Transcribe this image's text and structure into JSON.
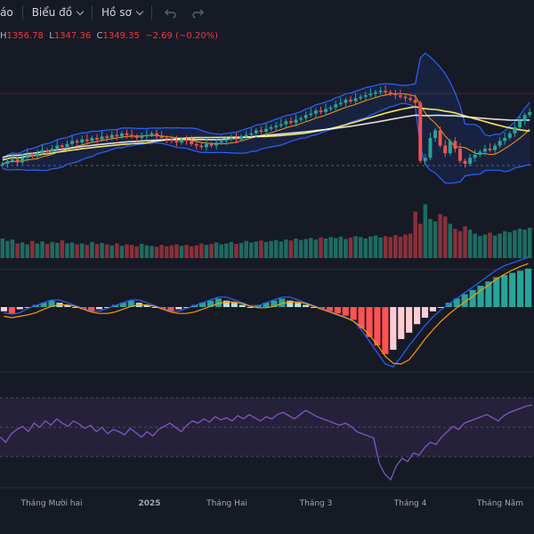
{
  "toolbar": {
    "truncated_item": "áo",
    "chart_menu": "Biểu đồ",
    "profile_menu": "Hồ sơ"
  },
  "legend": {
    "open_label": "",
    "high_label": "H",
    "high_value": "1356.78",
    "low_label": "L",
    "low_value": "1347.36",
    "close_label": "C",
    "close_value": "1349.35",
    "change": "−2.69 (−0.20%)"
  },
  "colors": {
    "background": "#161a25",
    "up": "#26a69a",
    "down": "#ef5350",
    "bb_band": "#2962ff",
    "ma_fast": "#ff9800",
    "ma_slow": "#f5e663",
    "ma_long": "#ffffff",
    "rsi": "#7e57c2"
  },
  "chart_data": {
    "type": "candlestick",
    "x_axis_labels": [
      "Tháng Mười hai",
      "2025",
      "Tháng Hai",
      "Tháng 3",
      "Tháng 4",
      "Tháng Năm"
    ],
    "panes": [
      "price",
      "volume",
      "macd",
      "rsi"
    ],
    "last_bar": {
      "high": 1356.78,
      "low": 1347.36,
      "close": 1349.35,
      "change": -2.69,
      "change_pct": -0.2
    },
    "price_shape": [
      18,
      20,
      21,
      19,
      22,
      24,
      23,
      25,
      27,
      26,
      28,
      30,
      29,
      31,
      33,
      32,
      34,
      33,
      35,
      34,
      36,
      35,
      37,
      36,
      38,
      37,
      36,
      35,
      36,
      37,
      38,
      36,
      35,
      34,
      33,
      32,
      34,
      33,
      31,
      30,
      29,
      31,
      30,
      32,
      33,
      34,
      35,
      34,
      36,
      37,
      38,
      40,
      39,
      41,
      42,
      43,
      44,
      46,
      45,
      47,
      48,
      50,
      51,
      53,
      52,
      54,
      55,
      57,
      58,
      60,
      59,
      61,
      62,
      63,
      64,
      65,
      66,
      65,
      64,
      63,
      62,
      61,
      60,
      58,
      20,
      22,
      35,
      40,
      30,
      25,
      33,
      28,
      20,
      18,
      22,
      24,
      26,
      28,
      27,
      30,
      33,
      35,
      38,
      42,
      46,
      50,
      52
    ],
    "volume_shape": [
      40,
      35,
      38,
      30,
      32,
      28,
      35,
      30,
      34,
      29,
      33,
      31,
      36,
      30,
      32,
      28,
      30,
      27,
      33,
      29,
      31,
      28,
      26,
      30,
      25,
      28,
      27,
      24,
      29,
      26,
      25,
      23,
      27,
      24,
      26,
      28,
      25,
      27,
      24,
      26,
      30,
      27,
      29,
      32,
      28,
      30,
      33,
      29,
      31,
      35,
      32,
      34,
      36,
      33,
      35,
      37,
      34,
      38,
      36,
      40,
      37,
      39,
      41,
      38,
      42,
      40,
      43,
      41,
      44,
      39,
      42,
      45,
      43,
      40,
      44,
      46,
      42,
      45,
      43,
      47,
      44,
      48,
      50,
      95,
      70,
      110,
      80,
      75,
      90,
      85,
      70,
      60,
      55,
      65,
      58,
      50,
      45,
      48,
      52,
      46,
      50,
      55,
      53,
      57,
      60,
      58,
      62
    ],
    "rsi_shape": [
      45,
      40,
      48,
      52,
      55,
      50,
      58,
      54,
      60,
      56,
      62,
      58,
      55,
      60,
      57,
      53,
      56,
      50,
      54,
      48,
      52,
      50,
      47,
      53,
      49,
      45,
      50,
      46,
      52,
      55,
      58,
      54,
      50,
      56,
      60,
      58,
      62,
      59,
      64,
      61,
      63,
      60,
      65,
      62,
      66,
      63,
      60,
      64,
      62,
      66,
      68,
      65,
      62,
      66,
      70,
      67,
      64,
      62,
      60,
      58,
      56,
      58,
      55,
      50,
      48,
      46,
      44,
      20,
      10,
      5,
      18,
      25,
      22,
      30,
      28,
      35,
      40,
      38,
      45,
      50,
      55,
      52,
      58,
      60,
      62,
      64,
      66,
      63,
      60,
      65,
      68,
      70,
      72,
      74,
      75
    ],
    "macd_shape": [
      -2,
      -3,
      -1,
      0,
      1,
      2,
      3,
      2,
      1,
      0,
      -1,
      -2,
      -1,
      0,
      1,
      2,
      3,
      2,
      1,
      0,
      -1,
      -2,
      -1,
      0,
      1,
      2,
      3,
      4,
      3,
      2,
      1,
      0,
      1,
      2,
      3,
      4,
      3,
      2,
      1,
      0,
      -1,
      -2,
      -3,
      -4,
      -6,
      -10,
      -14,
      -18,
      -22,
      -20,
      -15,
      -12,
      -8,
      -5,
      -2,
      0,
      2,
      4,
      6,
      8,
      10,
      12,
      14,
      15,
      16,
      17,
      18
    ]
  }
}
